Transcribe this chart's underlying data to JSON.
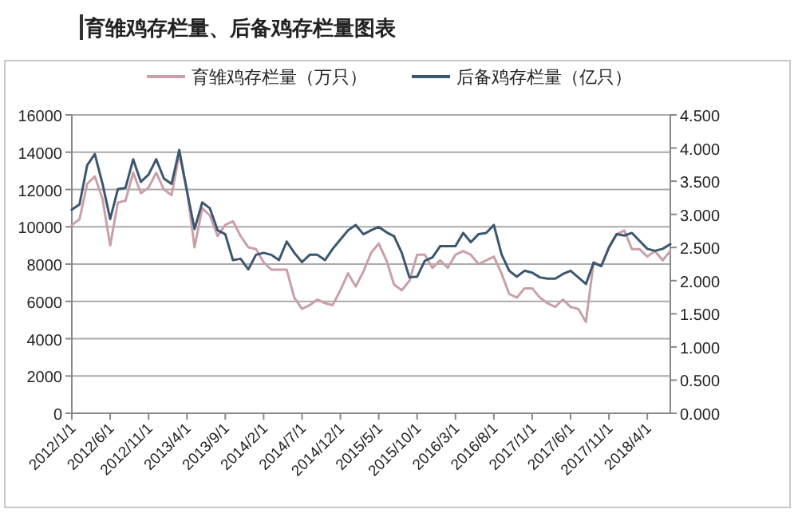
{
  "chart_data": {
    "type": "line",
    "title": "育雏鸡存栏量、后备鸡存栏量图表",
    "categories": [
      "2012/1/1",
      null,
      null,
      null,
      null,
      "2012/6/1",
      null,
      null,
      null,
      null,
      "2012/11/1",
      null,
      null,
      null,
      null,
      "2013/4/1",
      null,
      null,
      null,
      null,
      "2013/9/1",
      null,
      null,
      null,
      null,
      "2014/2/1",
      null,
      null,
      null,
      null,
      "2014/7/1",
      null,
      null,
      null,
      null,
      "2014/12/1",
      null,
      null,
      null,
      null,
      "2015/5/1",
      null,
      null,
      null,
      null,
      "2015/10/1",
      null,
      null,
      null,
      null,
      "2016/3/1",
      null,
      null,
      null,
      null,
      "2016/8/1",
      null,
      null,
      null,
      null,
      "2017/1/1",
      null,
      null,
      null,
      null,
      "2017/6/1",
      null,
      null,
      null,
      null,
      "2017/11/1",
      null,
      null,
      null,
      null,
      "2018/4/1",
      null,
      null,
      null
    ],
    "series": [
      {
        "name": "育雏鸡存栏量（万只）",
        "color": "#c9a0a8",
        "values": [
          10100,
          10400,
          12300,
          12700,
          11500,
          9000,
          11300,
          11400,
          12900,
          11800,
          12100,
          12900,
          12000,
          11700,
          13900,
          12000,
          8900,
          11000,
          10600,
          9500,
          10100,
          10300,
          9500,
          8900,
          8800,
          8100,
          7700,
          7700,
          7700,
          6200,
          5600,
          5800,
          6100,
          5900,
          5800,
          6600,
          7500,
          6800,
          7600,
          8600,
          9100,
          8200,
          6900,
          6600,
          7100,
          8500,
          8500,
          7800,
          8200,
          7800,
          8500,
          8700,
          8500,
          8000,
          8200,
          8400,
          7500,
          6400,
          6200,
          6700,
          6700,
          6200,
          5900,
          5700,
          6100,
          5700,
          5600,
          4900,
          8100,
          7900,
          8900,
          9600,
          9800,
          8800,
          8800,
          8400,
          8700,
          8200,
          8700
        ]
      },
      {
        "name": "后备鸡存栏量（亿只）",
        "color": "#3b5770",
        "axis": "y2",
        "values": [
          3.07,
          3.15,
          3.74,
          3.91,
          3.46,
          2.93,
          3.38,
          3.4,
          3.83,
          3.49,
          3.6,
          3.83,
          3.54,
          3.46,
          3.97,
          3.35,
          2.78,
          3.18,
          3.09,
          2.76,
          2.7,
          2.31,
          2.33,
          2.17,
          2.39,
          2.42,
          2.39,
          2.31,
          2.59,
          2.42,
          2.28,
          2.39,
          2.39,
          2.31,
          2.48,
          2.62,
          2.76,
          2.84,
          2.7,
          2.76,
          2.81,
          2.73,
          2.67,
          2.42,
          2.05,
          2.06,
          2.3,
          2.35,
          2.52,
          2.52,
          2.52,
          2.72,
          2.58,
          2.7,
          2.72,
          2.84,
          2.4,
          2.15,
          2.06,
          2.15,
          2.12,
          2.05,
          2.03,
          2.03,
          2.1,
          2.15,
          2.05,
          1.95,
          2.27,
          2.22,
          2.5,
          2.7,
          2.68,
          2.72,
          2.6,
          2.48,
          2.45,
          2.48,
          2.55
        ]
      }
    ],
    "ylim": [
      0,
      16000
    ],
    "yticks": [
      0,
      2000,
      4000,
      6000,
      8000,
      10000,
      12000,
      14000,
      16000
    ],
    "y2lim": [
      0,
      4.5
    ],
    "y2ticks": [
      {
        "value": 0,
        "label": "0.000"
      },
      {
        "value": 0.5,
        "label": "0.500"
      },
      {
        "value": 1,
        "label": "1.000"
      },
      {
        "value": 1.5,
        "label": "1.500"
      },
      {
        "value": 2,
        "label": "2.000"
      },
      {
        "value": 2.5,
        "label": "2.500"
      },
      {
        "value": 3,
        "label": "3.000"
      },
      {
        "value": 3.5,
        "label": "3.500"
      },
      {
        "value": 4,
        "label": "4.000"
      },
      {
        "value": 4.5,
        "label": "4.500"
      }
    ],
    "grid": "y",
    "legend": "top"
  }
}
